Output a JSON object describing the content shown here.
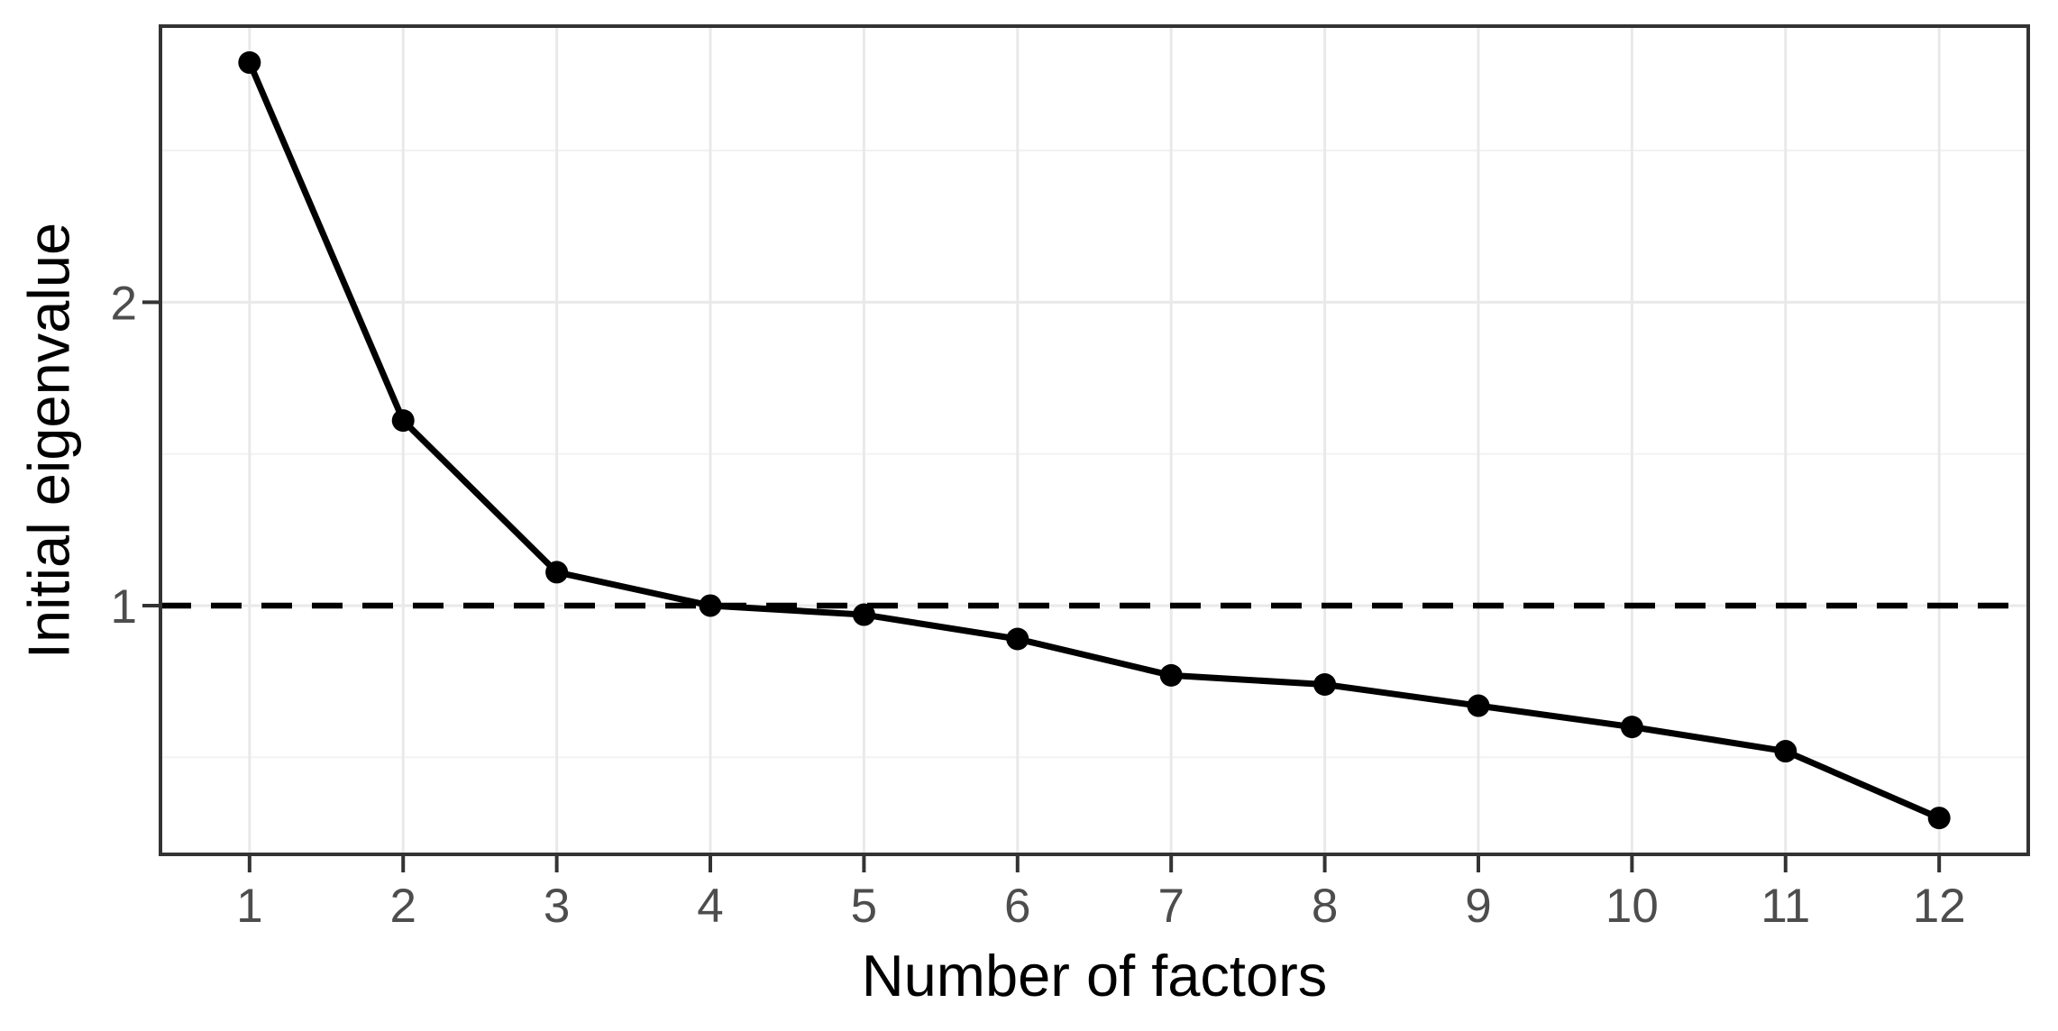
{
  "chart_data": {
    "type": "line",
    "title": "",
    "xlabel": "Number of factors",
    "ylabel": "Initial eigenvalue",
    "x": [
      1,
      2,
      3,
      4,
      5,
      6,
      7,
      8,
      9,
      10,
      11,
      12
    ],
    "y": [
      2.79,
      1.61,
      1.11,
      1.0,
      0.97,
      0.89,
      0.77,
      0.74,
      0.67,
      0.6,
      0.52,
      0.3
    ],
    "series_name": "Initial eigenvalue",
    "reference_line": {
      "value": 1,
      "orientation": "horizontal",
      "style": "dashed",
      "color": "#000000"
    },
    "xlim": [
      0.42,
      12.58
    ],
    "ylim": [
      0.18,
      2.91
    ],
    "x_ticks": {
      "values": [
        1,
        2,
        3,
        4,
        5,
        6,
        7,
        8,
        9,
        10,
        11,
        12
      ],
      "labels": [
        "1",
        "2",
        "3",
        "4",
        "5",
        "6",
        "7",
        "8",
        "9",
        "10",
        "11",
        "12"
      ]
    },
    "y_ticks": {
      "values": [
        1,
        2
      ],
      "labels": [
        "1",
        "2"
      ]
    },
    "y_minor_gridlines": [
      0.5,
      1.5,
      2.5
    ],
    "grid": "horizontal major+minor, vertical major",
    "legend": "none",
    "style": {
      "background": "#ffffff",
      "line_color": "#000000",
      "point_color": "#000000",
      "grid_major_color": "#e9e9e9",
      "grid_minor_color": "#f2f2f2",
      "panel_border_color": "#333333",
      "tick_mark_color": "#333333",
      "tick_label_color": "#4d4d4d",
      "axis_title_color": "#000000"
    }
  }
}
